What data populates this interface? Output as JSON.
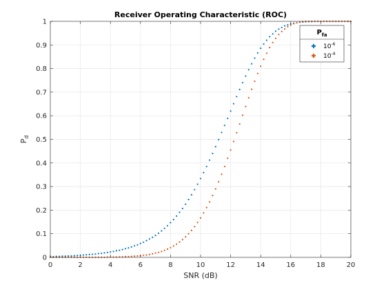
{
  "chart_data": {
    "type": "scatter",
    "title": "Receiver Operating Characteristic (ROC)",
    "xlabel": "SNR (dB)",
    "ylabel": "P",
    "ylabel_subscript": "d",
    "xlim": [
      0,
      20
    ],
    "ylim": [
      0,
      1
    ],
    "xticks": [
      "0",
      "2",
      "4",
      "6",
      "8",
      "10",
      "12",
      "14",
      "16",
      "18",
      "20"
    ],
    "yticks": [
      "0",
      "0.1",
      "0.2",
      "0.3",
      "0.4",
      "0.5",
      "0.6",
      "0.7",
      "0.8",
      "0.9",
      "1"
    ],
    "grid": true,
    "legend": {
      "placement": "top-right",
      "title": "P",
      "title_subscript": "fa"
    },
    "x_step": 0.2,
    "series": [
      {
        "name_base": "10",
        "name_exponent": "-6",
        "color": "#0072BD",
        "y": [
          0.003,
          0.003,
          0.004,
          0.004,
          0.005,
          0.005,
          0.006,
          0.006,
          0.007,
          0.008,
          0.009,
          0.01,
          0.011,
          0.012,
          0.013,
          0.014,
          0.016,
          0.017,
          0.019,
          0.021,
          0.023,
          0.025,
          0.028,
          0.03,
          0.033,
          0.037,
          0.04,
          0.044,
          0.049,
          0.053,
          0.059,
          0.064,
          0.071,
          0.078,
          0.085,
          0.093,
          0.102,
          0.112,
          0.123,
          0.134,
          0.147,
          0.16,
          0.175,
          0.191,
          0.207,
          0.225,
          0.245,
          0.265,
          0.287,
          0.31,
          0.334,
          0.359,
          0.385,
          0.412,
          0.44,
          0.469,
          0.499,
          0.529,
          0.559,
          0.589,
          0.62,
          0.651,
          0.681,
          0.711,
          0.74,
          0.768,
          0.795,
          0.82,
          0.844,
          0.866,
          0.886,
          0.904,
          0.92,
          0.935,
          0.947,
          0.958,
          0.967,
          0.974,
          0.981,
          0.985,
          0.989,
          0.992,
          0.994,
          0.996,
          0.997,
          0.998,
          0.999,
          0.999,
          1,
          1,
          1,
          1,
          1,
          1,
          1,
          1,
          1,
          1,
          1,
          1,
          1
        ]
      },
      {
        "name_base": "10",
        "name_exponent": "-4",
        "color": "#D95319",
        "y": [
          0,
          0,
          0,
          0,
          0,
          0,
          0,
          0,
          0,
          0,
          0,
          0,
          0,
          0,
          0,
          0,
          0,
          0,
          0,
          0.001,
          0.001,
          0.001,
          0.001,
          0.002,
          0.002,
          0.003,
          0.003,
          0.004,
          0.005,
          0.006,
          0.007,
          0.009,
          0.01,
          0.012,
          0.015,
          0.018,
          0.021,
          0.025,
          0.029,
          0.035,
          0.041,
          0.048,
          0.056,
          0.065,
          0.075,
          0.087,
          0.1,
          0.114,
          0.13,
          0.148,
          0.167,
          0.188,
          0.211,
          0.235,
          0.262,
          0.29,
          0.32,
          0.352,
          0.385,
          0.42,
          0.455,
          0.491,
          0.528,
          0.565,
          0.602,
          0.639,
          0.676,
          0.712,
          0.746,
          0.779,
          0.81,
          0.839,
          0.865,
          0.889,
          0.91,
          0.928,
          0.944,
          0.957,
          0.968,
          0.977,
          0.984,
          0.99,
          0.994,
          0.997,
          0.999,
          1,
          1,
          1,
          1,
          1,
          1,
          1,
          1,
          1,
          1,
          1,
          1,
          1,
          1,
          1,
          1
        ]
      }
    ]
  }
}
